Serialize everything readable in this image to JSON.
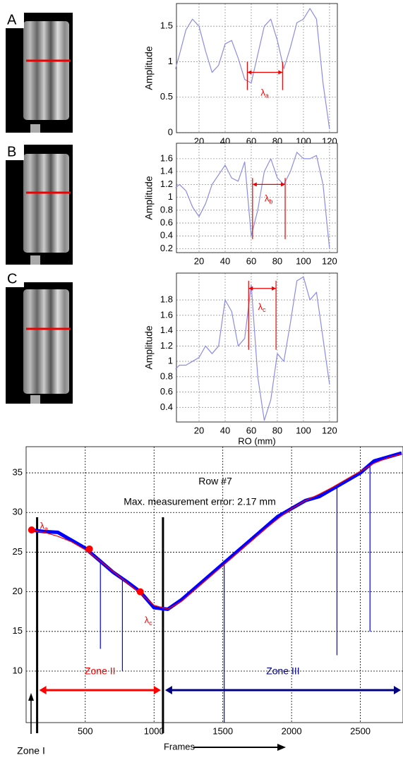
{
  "chart_data": [
    {
      "type": "line",
      "panel": "A",
      "ylabel": "Amplitude",
      "x": [
        2,
        5,
        10,
        15,
        20,
        25,
        30,
        35,
        40,
        45,
        50,
        55,
        60,
        65,
        70,
        75,
        80,
        85,
        90,
        95,
        100,
        105,
        110,
        115,
        120
      ],
      "series": [
        {
          "color": "#8c8ce6",
          "values": [
            0.9,
            1.1,
            1.45,
            1.6,
            1.5,
            1.15,
            0.85,
            0.95,
            1.25,
            1.3,
            1.05,
            0.75,
            0.7,
            1.1,
            1.5,
            1.6,
            1.3,
            0.9,
            1.2,
            1.55,
            1.6,
            1.75,
            1.6,
            0.7,
            0.05
          ]
        }
      ],
      "annotations": [
        {
          "symbol": "λ",
          "sub": "a",
          "x1": 57,
          "x2": 84,
          "y": 0.85,
          "y1": 0.6,
          "y2": 1.0,
          "ty": 0.55
        }
      ],
      "xlim": [
        2.7,
        126
      ],
      "ylim": [
        0,
        1.82
      ],
      "xticks": [
        20,
        40,
        60,
        80,
        100,
        120
      ],
      "yticks": [
        0,
        0.5,
        1,
        1.5
      ],
      "grid": true
    },
    {
      "type": "line",
      "panel": "B",
      "ylabel": "Amplitude",
      "x": [
        2,
        5,
        10,
        15,
        20,
        25,
        30,
        35,
        40,
        45,
        50,
        55,
        60,
        65,
        70,
        75,
        80,
        85,
        90,
        95,
        100,
        105,
        110,
        115,
        120
      ],
      "series": [
        {
          "color": "#8c8ce6",
          "values": [
            1.15,
            1.2,
            1.1,
            0.85,
            0.7,
            0.9,
            1.2,
            1.35,
            1.5,
            1.3,
            1.25,
            1.55,
            0.4,
            0.8,
            1.4,
            1.6,
            1.3,
            1.2,
            1.4,
            1.7,
            1.6,
            1.6,
            1.65,
            1.2,
            0.2
          ]
        }
      ],
      "annotations": [
        {
          "symbol": "λ",
          "sub": "b",
          "x1": 61,
          "x2": 86,
          "y": 1.2,
          "y1": 0.35,
          "y2": 1.3,
          "ty": 0.97
        }
      ],
      "xlim": [
        2.7,
        126
      ],
      "ylim": [
        0.14,
        1.84
      ],
      "xticks": [
        20,
        40,
        60,
        80,
        100,
        120
      ],
      "yticks": [
        0.2,
        0.4,
        0.6,
        0.8,
        1,
        1.2,
        1.4,
        1.6
      ],
      "grid": true
    },
    {
      "type": "line",
      "panel": "C",
      "ylabel": "Amplitude",
      "xlabel": "RO (mm)",
      "x": [
        2,
        5,
        10,
        15,
        20,
        25,
        30,
        35,
        40,
        45,
        50,
        55,
        60,
        65,
        70,
        75,
        80,
        85,
        90,
        95,
        100,
        105,
        110,
        115,
        120
      ],
      "series": [
        {
          "color": "#8c8ce6",
          "values": [
            0.9,
            0.95,
            0.95,
            1.0,
            1.05,
            1.2,
            1.1,
            1.2,
            1.8,
            1.65,
            1.2,
            1.3,
            2.0,
            0.8,
            0.23,
            0.5,
            1.1,
            1.0,
            1.5,
            2.05,
            2.1,
            1.8,
            1.9,
            1.3,
            0.7
          ]
        }
      ],
      "annotations": [
        {
          "symbol": "λ",
          "sub": "c",
          "x1": 58,
          "x2": 79,
          "y": 1.95,
          "y1": 1.15,
          "y2": 2.05,
          "ty": 1.7
        }
      ],
      "xlim": [
        2.7,
        126
      ],
      "ylim": [
        0.21,
        2.15
      ],
      "xticks": [
        20,
        40,
        60,
        80,
        100,
        120
      ],
      "yticks": [
        0.4,
        0.6,
        0.8,
        1,
        1.2,
        1.4,
        1.6,
        1.8
      ],
      "grid": true
    },
    {
      "type": "line",
      "xlabel": "Frames",
      "title": "Row #7",
      "subtitle": "Max. measurement error: 2.17 mm",
      "x": [
        100,
        200,
        300,
        400,
        500,
        600,
        700,
        800,
        900,
        1000,
        1100,
        1200,
        1300,
        1400,
        1500,
        1600,
        1700,
        1800,
        1900,
        2000,
        2100,
        2200,
        2300,
        2400,
        2500,
        2600,
        2700,
        2800
      ],
      "series": [
        {
          "color": "#0000ff",
          "values": [
            27.8,
            27.6,
            27.5,
            26.5,
            25.5,
            24,
            22.5,
            21.3,
            20,
            18,
            17.8,
            19,
            20.5,
            22,
            23.5,
            25,
            26.5,
            28,
            29.5,
            30.5,
            31.5,
            32,
            33,
            34,
            35,
            36.5,
            37,
            37.5
          ]
        },
        {
          "color": "#ff0000",
          "values": [
            27.8,
            27.5,
            27,
            26.3,
            25.3,
            24,
            22.6,
            21.2,
            19.8,
            18.3,
            17.8,
            18.8,
            20.3,
            21.8,
            23.3,
            24.8,
            26.3,
            27.8,
            29.2,
            30.5,
            31.5,
            32.3,
            33.2,
            34.2,
            35.2,
            36.2,
            36.9,
            37.4
          ]
        }
      ],
      "spikes": {
        "color": "#0000ff",
        "x": [
          610,
          770,
          1510,
          2330,
          2570
        ],
        "values": [
          12.8,
          10,
          3.5,
          12,
          15
        ]
      },
      "markers": {
        "color": "#ff0000",
        "x": [
          110,
          530,
          900
        ],
        "values": [
          27.8,
          25.4,
          20
        ]
      },
      "labels": [
        {
          "symbol": "λ",
          "sub": "a",
          "x": 170,
          "y": 28.2
        },
        {
          "symbol": "λ",
          "sub": "c",
          "x": 930,
          "y": 16.3
        }
      ],
      "boundaries": [
        150,
        1065
      ],
      "zones": [
        {
          "label": "Zone I"
        },
        {
          "label": "Zone II",
          "start": 150,
          "end": 1065,
          "color": "#ff0000"
        },
        {
          "label": "Zone III",
          "start": 1065,
          "end": 2810,
          "color": "#000080"
        }
      ],
      "xlim": [
        70,
        2810
      ],
      "ylim": [
        3.5,
        38.3
      ],
      "xticks": [
        500,
        1000,
        1500,
        2000,
        2500
      ],
      "yticks": [
        10,
        15,
        20,
        25,
        30,
        35
      ],
      "grid": true
    }
  ]
}
